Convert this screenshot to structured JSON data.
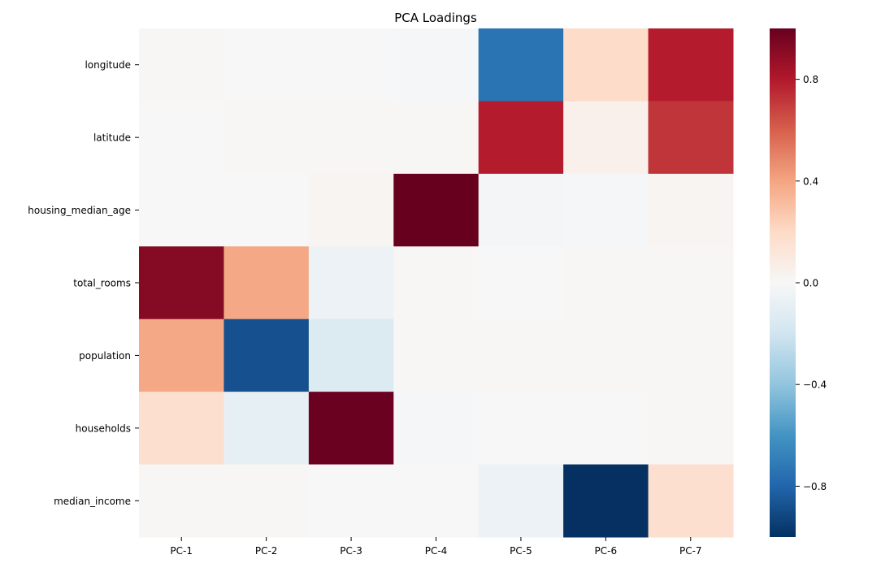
{
  "chart_data": {
    "type": "heatmap",
    "title": "PCA Loadings",
    "xlabel": "",
    "ylabel": "",
    "x_categories": [
      "PC-1",
      "PC-2",
      "PC-3",
      "PC-4",
      "PC-5",
      "PC-6",
      "PC-7"
    ],
    "y_categories": [
      "longitude",
      "latitude",
      "housing_median_age",
      "total_rooms",
      "population",
      "households",
      "median_income"
    ],
    "values": [
      [
        0.01,
        0.0,
        0.0,
        -0.01,
        -0.74,
        0.19,
        0.79
      ],
      [
        0.0,
        0.01,
        0.01,
        0.01,
        0.79,
        0.05,
        0.72
      ],
      [
        0.0,
        0.0,
        0.02,
        1.0,
        -0.02,
        -0.01,
        0.02
      ],
      [
        0.92,
        0.39,
        -0.06,
        0.01,
        0.0,
        0.01,
        0.01
      ],
      [
        0.39,
        -0.88,
        -0.14,
        0.01,
        0.01,
        0.01,
        0.01
      ],
      [
        0.17,
        -0.09,
        0.99,
        -0.01,
        0.0,
        0.0,
        0.01
      ],
      [
        0.01,
        0.01,
        0.0,
        0.0,
        -0.06,
        -1.0,
        0.17
      ]
    ],
    "colorbar": {
      "colormap": "RdBu_r",
      "vmin": -1.0,
      "vmax": 1.0,
      "ticks": [
        -0.8,
        -0.4,
        0.0,
        0.4,
        0.8
      ],
      "tick_labels": [
        "−0.8",
        "−0.4",
        "0.0",
        "0.4",
        "0.8"
      ]
    },
    "grid": false
  }
}
